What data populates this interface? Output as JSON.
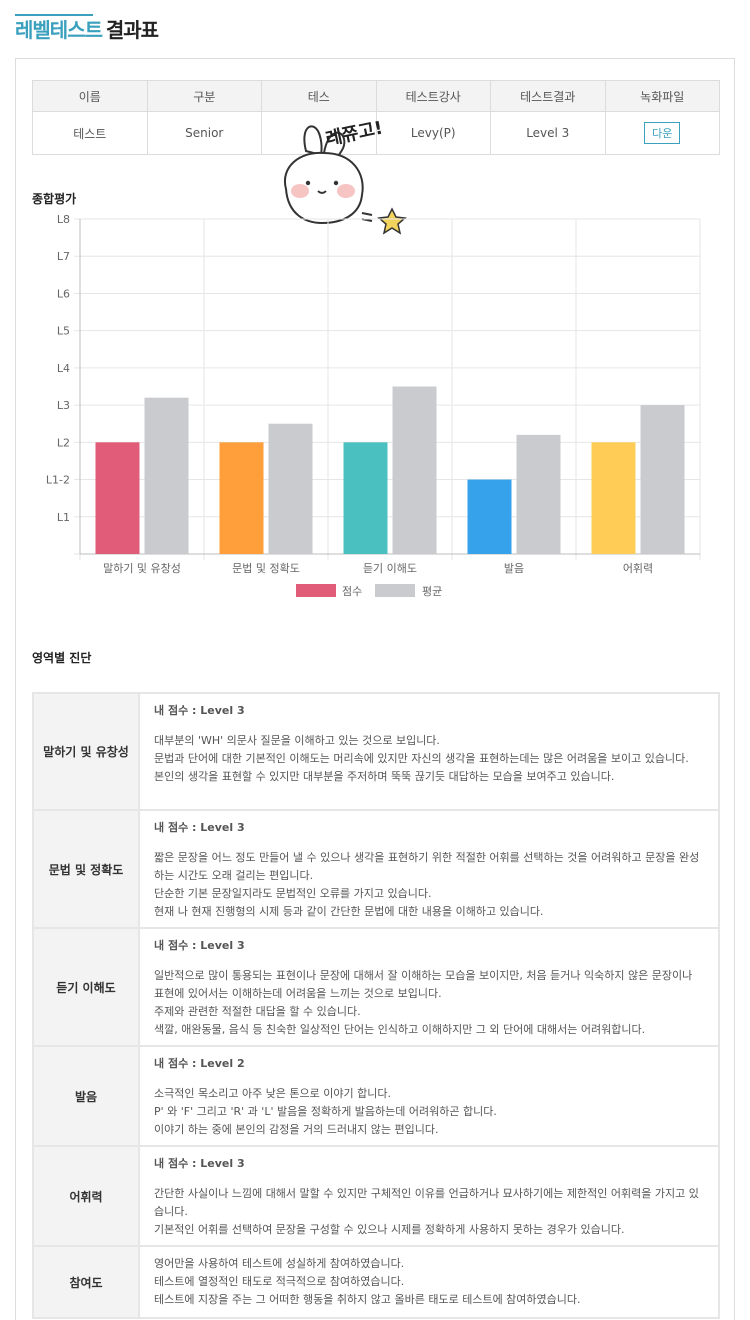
{
  "header": {
    "title_part1": "레벨테스트",
    "title_part2": "결과표"
  },
  "info_table": {
    "headers": [
      "이름",
      "구분",
      "테스",
      "테스트강사",
      "테스트결과",
      "녹화파일"
    ],
    "row": {
      "name": "테스트",
      "category": "Senior",
      "date": "",
      "teacher": "Levy(P)",
      "result": "Level 3",
      "download_label": "다운"
    }
  },
  "sticker": {
    "text": "레쮸고!"
  },
  "overall": {
    "label": "종합평가"
  },
  "chart_data": {
    "type": "bar",
    "categories": [
      "말하기 및 유창성",
      "문법 및 정확도",
      "듣기 이해도",
      "발음",
      "어휘력"
    ],
    "y_tick_labels": [
      "L1",
      "L1-2",
      "L2",
      "L3",
      "L4",
      "L5",
      "L6",
      "L7",
      "L8"
    ],
    "ylim": [
      0,
      9
    ],
    "series": [
      {
        "name": "점수",
        "values": [
          3,
          3,
          3,
          2,
          3
        ],
        "colors": [
          "#e05c78",
          "#fe9f3b",
          "#4bc0c0",
          "#36a2eb",
          "#ffcd56"
        ]
      },
      {
        "name": "평균",
        "values": [
          4.2,
          3.5,
          4.5,
          3.2,
          4.0
        ],
        "color": "#c9cbcf"
      }
    ],
    "legend_position": "bottom",
    "grid": true
  },
  "diagnosis": {
    "label": "영역별 진단",
    "score_prefix": "내 점수 :",
    "rows": [
      {
        "area": "말하기 및 유창성",
        "score": "Level 3",
        "lines": [
          "대부분의 'WH' 의문사 질문을 이해하고 있는 것으로 보입니다.",
          "문법과 단어에 대한 기본적인 이해도는 머리속에 있지만 자신의 생각을 표현하는데는 많은 어려움을 보이고 있습니다.",
          "본인의 생각을 표현할 수 있지만 대부분을 주저하며 뚝뚝 끊기듯 대답하는 모습을 보여주고 있습니다."
        ]
      },
      {
        "area": "문법 및 정확도",
        "score": "Level 3",
        "lines": [
          "짧은 문장을 어느 정도 만들어 낼 수 있으나 생각을 표현하기 위한 적절한 어휘를 선택하는 것을 어려워하고 문장을 완성하는 시간도 오래 걸리는 편입니다.",
          "단순한 기본 문장일지라도 문법적인 오류를 가지고 있습니다.",
          "현재 나 현재 진행형의 시제 등과 같이 간단한 문법에 대한 내용을 이해하고 있습니다."
        ]
      },
      {
        "area": "듣기 이해도",
        "score": "Level 3",
        "lines": [
          "일반적으로 많이 통용되는 표현이나 문장에 대해서 잘 이해하는 모습을 보이지만, 처음 듣거나 익숙하지 않은 문장이나 표현에 있어서는 이해하는데 어려움을 느끼는 것으로 보입니다.",
          "주제와 관련한 적절한 대답을 할 수 있습니다.",
          "색깔, 애완동물, 음식 등 친숙한 일상적인 단어는 인식하고 이해하지만 그 외 단어에 대해서는 어려워합니다."
        ]
      },
      {
        "area": "발음",
        "score": "Level 2",
        "lines": [
          "소극적인 목소리고 아주 낮은 톤으로 이야기 합니다.",
          "P' 와 'F' 그리고 'R' 과 'L' 발음을 정확하게 발음하는데 어려워하곤 합니다.",
          "이야기 하는 중에 본인의 감정을 거의 드러내지 않는 편입니다."
        ]
      },
      {
        "area": "어휘력",
        "score": "Level 3",
        "lines": [
          "간단한 사실이나 느낌에 대해서 말할 수 있지만 구체적인 이유를 언급하거나 묘사하기에는 제한적인 어휘력을 가지고 있습니다.",
          "기본적인 어휘를 선택하여 문장을 구성할 수 있으나 시제를 정확하게 사용하지 못하는 경우가 있습니다."
        ]
      },
      {
        "area": "참여도",
        "lines": [
          "영어만을 사용하여 테스트에 성실하게 참여하였습니다.",
          "테스트에 열정적인 태도로 적극적으로 참여하였습니다.",
          "테스트에 지장을 주는 그 어떠한 행동을 취하지 않고 올바른 태도로 테스트에 참여하였습니다."
        ]
      }
    ]
  }
}
